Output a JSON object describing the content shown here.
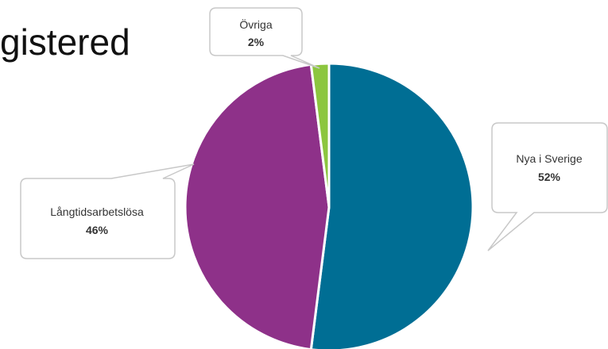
{
  "heading": "gistered",
  "chart_data": {
    "type": "pie",
    "title": "",
    "slices": [
      {
        "label": "Nya i Sverige",
        "value": 52,
        "value_label": "52%",
        "color": "#006e94"
      },
      {
        "label": "Långtidsarbetslösa",
        "value": 46,
        "value_label": "46%",
        "color": "#8e3189"
      },
      {
        "label": "Övriga",
        "value": 2,
        "value_label": "2%",
        "color": "#8cc63f"
      }
    ],
    "unit": "%",
    "legend": "callouts"
  }
}
